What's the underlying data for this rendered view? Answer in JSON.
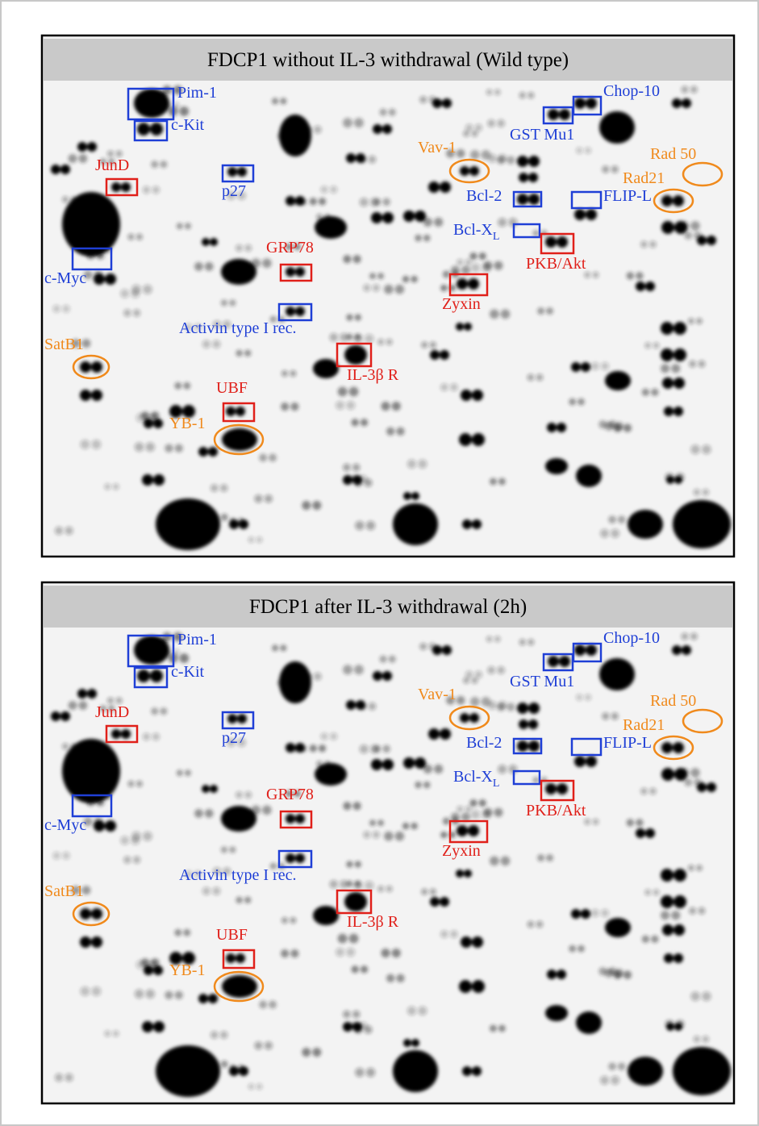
{
  "panels": [
    {
      "title": "FDCP1 without IL-3 withdrawal (Wild type)",
      "labels": [
        {
          "text": "Pim-1",
          "color": "#1f3fd6"
        },
        {
          "text": "c-Kit",
          "color": "#1f3fd6"
        },
        {
          "text": "JunD",
          "color": "#e0201a"
        },
        {
          "text": "p27",
          "color": "#1f3fd6"
        },
        {
          "text": "c-Myc",
          "color": "#1f3fd6"
        },
        {
          "text": "GRP78",
          "color": "#e0201a"
        },
        {
          "text": "Activin type I rec.",
          "color": "#1f3fd6"
        },
        {
          "text": "SatB1",
          "color": "#f08a1c"
        },
        {
          "text": "IL-3β R",
          "color": "#e0201a"
        },
        {
          "text": "UBF",
          "color": "#e0201a"
        },
        {
          "text": "YB-1",
          "color": "#f08a1c"
        },
        {
          "text": "Vav-1",
          "color": "#f08a1c"
        },
        {
          "text": "Zyxin",
          "color": "#e0201a"
        },
        {
          "text": "Bcl-2",
          "color": "#1f3fd6"
        },
        {
          "text": "Bcl-X",
          "sub": "L",
          "color": "#1f3fd6"
        },
        {
          "text": "PKB/Akt",
          "color": "#e0201a"
        },
        {
          "text": "GST Mu1",
          "color": "#1f3fd6"
        },
        {
          "text": "Chop-10",
          "color": "#1f3fd6"
        },
        {
          "text": "FLIP-L",
          "color": "#1f3fd6"
        },
        {
          "text": "Rad 50",
          "color": "#f08a1c"
        },
        {
          "text": "Rad21",
          "color": "#f08a1c"
        }
      ]
    },
    {
      "title": "FDCP1 after IL-3 withdrawal (2h)",
      "labels": [
        {
          "text": "Pim-1",
          "color": "#1f3fd6"
        },
        {
          "text": "c-Kit",
          "color": "#1f3fd6"
        },
        {
          "text": "JunD",
          "color": "#e0201a"
        },
        {
          "text": "p27",
          "color": "#1f3fd6"
        },
        {
          "text": "c-Myc",
          "color": "#1f3fd6"
        },
        {
          "text": "GRP78",
          "color": "#e0201a"
        },
        {
          "text": "Activin type I rec.",
          "color": "#1f3fd6"
        },
        {
          "text": "SatB1",
          "color": "#f08a1c"
        },
        {
          "text": "IL-3β R",
          "color": "#e0201a"
        },
        {
          "text": "UBF",
          "color": "#e0201a"
        },
        {
          "text": "YB-1",
          "color": "#f08a1c"
        },
        {
          "text": "Vav-1",
          "color": "#f08a1c"
        },
        {
          "text": "Zyxin",
          "color": "#e0201a"
        },
        {
          "text": "Bcl-2",
          "color": "#1f3fd6"
        },
        {
          "text": "Bcl-X",
          "sub": "L",
          "color": "#1f3fd6"
        },
        {
          "text": "PKB/Akt",
          "color": "#e0201a"
        },
        {
          "text": "GST Mu1",
          "color": "#1f3fd6"
        },
        {
          "text": "Chop-10",
          "color": "#1f3fd6"
        },
        {
          "text": "FLIP-L",
          "color": "#1f3fd6"
        },
        {
          "text": "Rad 50",
          "color": "#f08a1c"
        },
        {
          "text": "Rad21",
          "color": "#f08a1c"
        }
      ]
    }
  ]
}
